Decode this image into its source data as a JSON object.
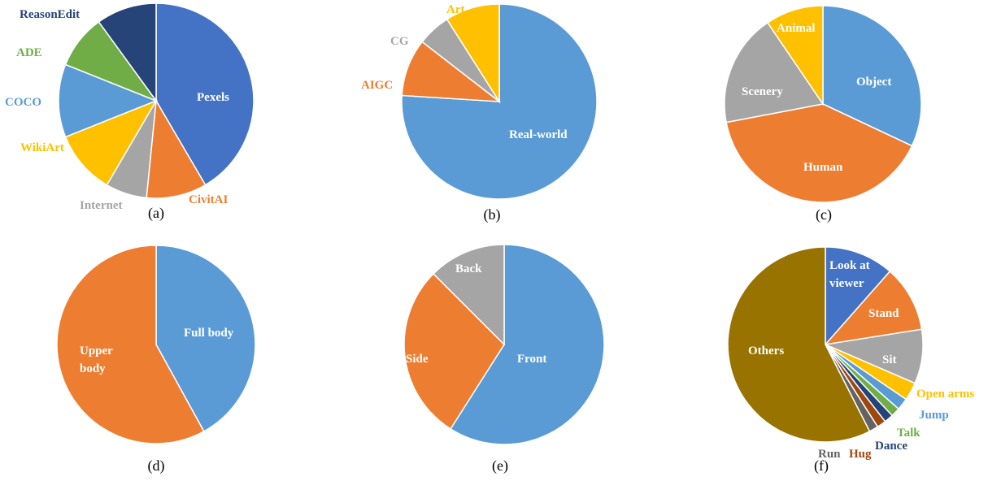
{
  "chart_data": [
    {
      "type": "pie",
      "caption": "(a)",
      "slices": [
        {
          "label": "Pexels",
          "value": 39.5,
          "color": "#4472C4"
        },
        {
          "label": "CivitAI",
          "value": 9.5,
          "color": "#ED7D31"
        },
        {
          "label": "Internet",
          "value": 6.5,
          "color": "#A5A5A5"
        },
        {
          "label": "WikiArt",
          "value": 10.0,
          "color": "#FFC000"
        },
        {
          "label": "COCO",
          "value": 11.5,
          "color": "#5B9BD5"
        },
        {
          "label": "ADE",
          "value": 8.5,
          "color": "#70AD47"
        },
        {
          "label": "ReasonEdit",
          "value": 9.5,
          "color": "#264478"
        }
      ]
    },
    {
      "type": "pie",
      "caption": "(b)",
      "slices": [
        {
          "label": "Real-world",
          "value": 76.0,
          "color": "#5B9BD5"
        },
        {
          "label": "AIGC",
          "value": 9.5,
          "color": "#ED7D31"
        },
        {
          "label": "CG",
          "value": 5.5,
          "color": "#A5A5A5"
        },
        {
          "label": "Art",
          "value": 9.0,
          "color": "#FFC000"
        }
      ]
    },
    {
      "type": "pie",
      "caption": "(c)",
      "slices": [
        {
          "label": "Object",
          "value": 32.0,
          "color": "#5B9BD5"
        },
        {
          "label": "Human",
          "value": 40.0,
          "color": "#ED7D31"
        },
        {
          "label": "Scenery",
          "value": 18.5,
          "color": "#A5A5A5"
        },
        {
          "label": "Animal",
          "value": 9.5,
          "color": "#FFC000"
        }
      ]
    },
    {
      "type": "pie",
      "caption": "(d)",
      "slices": [
        {
          "label": "Full body",
          "value": 42.0,
          "color": "#5B9BD5"
        },
        {
          "label": "Upper body",
          "value": 58.0,
          "color": "#ED7D31"
        }
      ]
    },
    {
      "type": "pie",
      "caption": "(e)",
      "slices": [
        {
          "label": "Front",
          "value": 59.0,
          "color": "#5B9BD5"
        },
        {
          "label": "Side",
          "value": 28.5,
          "color": "#ED7D31"
        },
        {
          "label": "Back",
          "value": 12.5,
          "color": "#A5A5A5"
        }
      ]
    },
    {
      "type": "pie",
      "caption": "(f)",
      "slices": [
        {
          "label": "Look at viewer",
          "value": 11.5,
          "color": "#4472C4"
        },
        {
          "label": "Stand",
          "value": 11.0,
          "color": "#ED7D31"
        },
        {
          "label": "Sit",
          "value": 9.0,
          "color": "#A5A5A5"
        },
        {
          "label": "Open arms",
          "value": 3.0,
          "color": "#FFC000"
        },
        {
          "label": "Jump",
          "value": 2.0,
          "color": "#5B9BD5"
        },
        {
          "label": "Talk",
          "value": 1.5,
          "color": "#70AD47"
        },
        {
          "label": "Dance",
          "value": 1.5,
          "color": "#264478"
        },
        {
          "label": "Hug",
          "value": 1.5,
          "color": "#9E480E"
        },
        {
          "label": "Run",
          "value": 1.5,
          "color": "#636363"
        },
        {
          "label": "Others",
          "value": 57.5,
          "color": "#997300"
        }
      ]
    }
  ]
}
